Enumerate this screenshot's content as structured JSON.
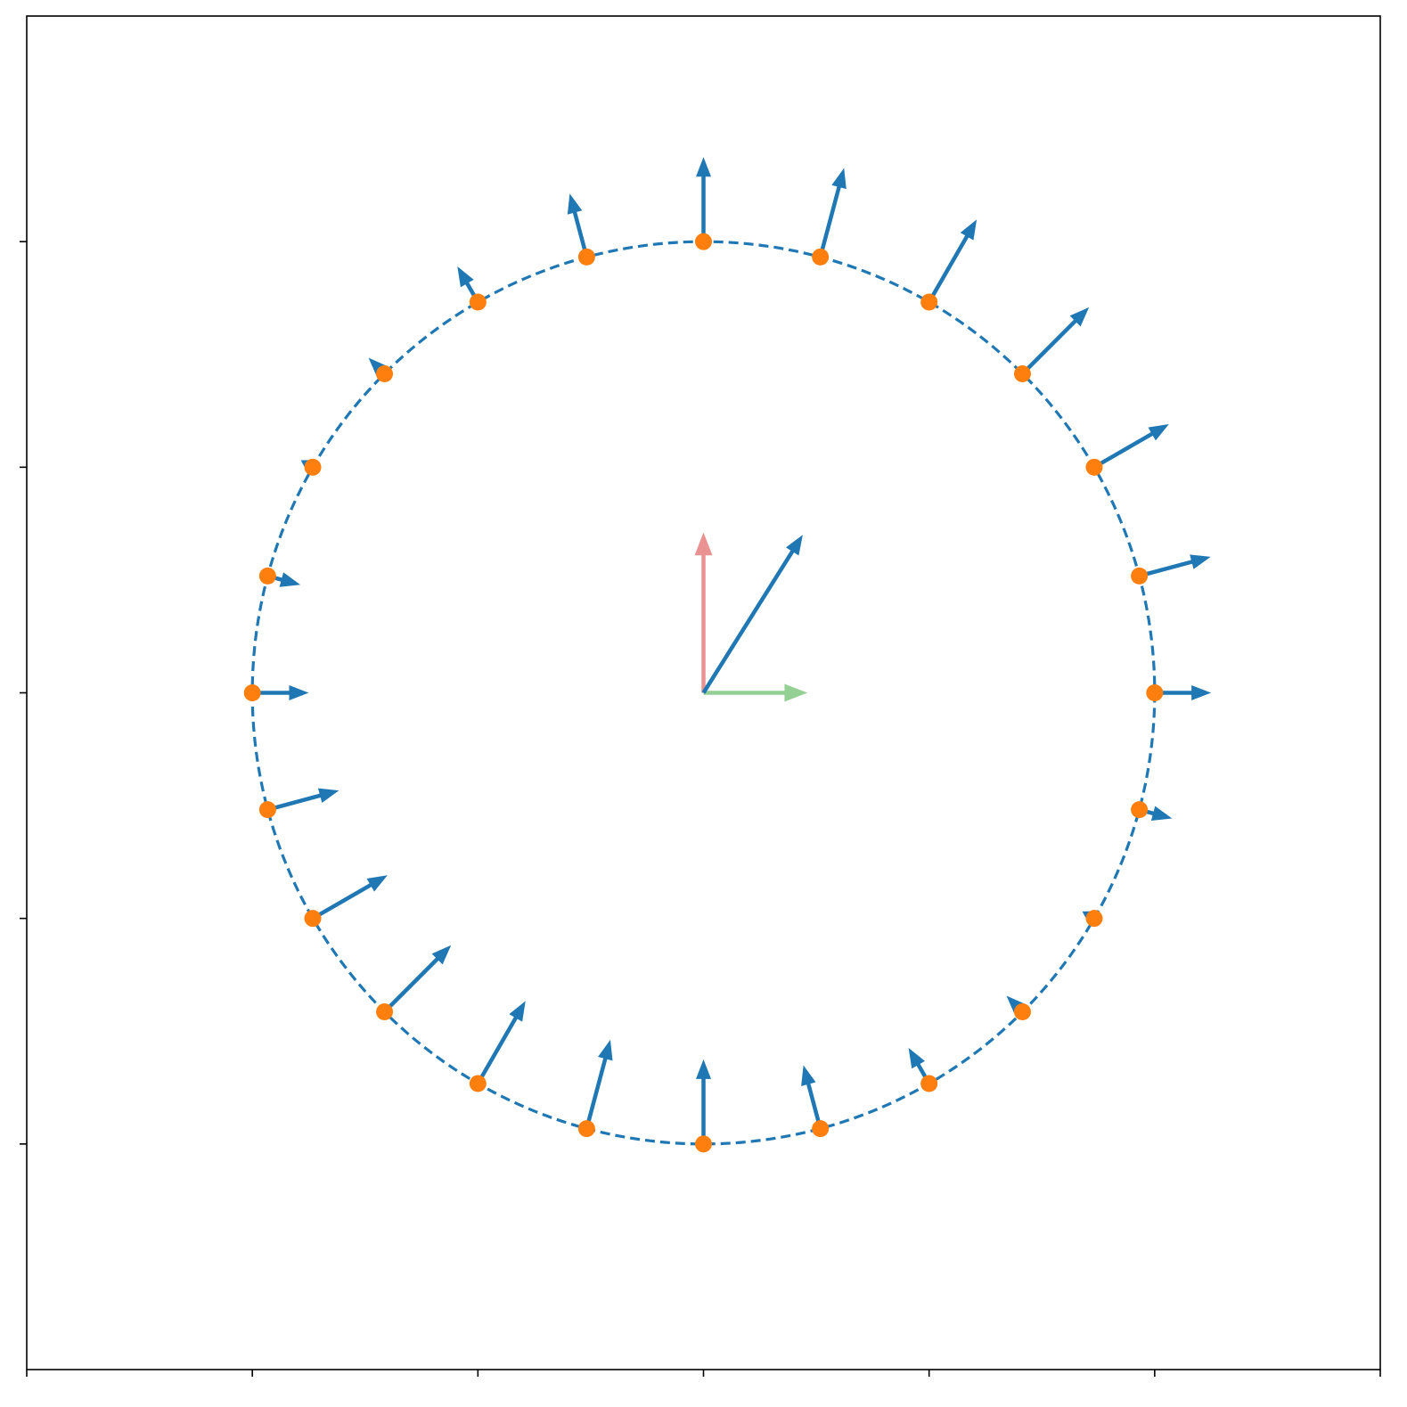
{
  "chart_data": {
    "type": "quiver",
    "title": "",
    "xlabel": "",
    "ylabel": "",
    "xlim": [
      -3,
      3
    ],
    "ylim": [
      -3,
      3
    ],
    "xticks": [
      -3,
      -2,
      -1,
      0,
      1,
      2,
      3
    ],
    "yticks": [
      -2,
      -1,
      0,
      1,
      2
    ],
    "tick_labels_shown": false,
    "grid": false,
    "circle": {
      "center": [
        0,
        0
      ],
      "radius": 2,
      "style": "dashed",
      "color": "#1f77b4"
    },
    "points_color": "#ff7f0e",
    "vectors_color": "#1f77b4",
    "field_vectors": [
      {
        "x": 2.0,
        "y": 0.0,
        "u": 0.25,
        "v": 0.0
      },
      {
        "x": 1.932,
        "y": 0.518,
        "u": 0.316,
        "v": 0.085
      },
      {
        "x": 1.732,
        "y": 1.0,
        "u": 0.331,
        "v": 0.191
      },
      {
        "x": 1.414,
        "y": 1.414,
        "u": 0.295,
        "v": 0.295
      },
      {
        "x": 1.0,
        "y": 1.732,
        "u": 0.211,
        "v": 0.366
      },
      {
        "x": 0.518,
        "y": 1.932,
        "u": 0.105,
        "v": 0.394
      },
      {
        "x": 0.0,
        "y": 2.0,
        "u": 0.0,
        "v": 0.375
      },
      {
        "x": -0.518,
        "y": 1.932,
        "u": -0.075,
        "v": 0.281
      },
      {
        "x": -1.0,
        "y": 1.732,
        "u": -0.091,
        "v": 0.158
      },
      {
        "x": -1.414,
        "y": 1.414,
        "u": -0.071,
        "v": 0.071
      },
      {
        "x": -1.732,
        "y": 1.0,
        "u": -0.053,
        "v": 0.031
      },
      {
        "x": -1.932,
        "y": 0.518,
        "u": 0.145,
        "v": -0.039
      },
      {
        "x": -2.0,
        "y": 0.0,
        "u": 0.25,
        "v": 0.0
      },
      {
        "x": -1.932,
        "y": -0.518,
        "u": 0.316,
        "v": 0.085
      },
      {
        "x": -1.732,
        "y": -1.0,
        "u": 0.331,
        "v": 0.191
      },
      {
        "x": -1.414,
        "y": -1.414,
        "u": 0.295,
        "v": 0.295
      },
      {
        "x": -1.0,
        "y": -1.732,
        "u": 0.211,
        "v": 0.366
      },
      {
        "x": -0.518,
        "y": -1.932,
        "u": 0.105,
        "v": 0.394
      },
      {
        "x": 0.0,
        "y": -2.0,
        "u": 0.0,
        "v": 0.375
      },
      {
        "x": 0.518,
        "y": -1.932,
        "u": -0.075,
        "v": 0.281
      },
      {
        "x": 1.0,
        "y": -1.732,
        "u": -0.091,
        "v": 0.158
      },
      {
        "x": 1.414,
        "y": -1.414,
        "u": -0.071,
        "v": 0.071
      },
      {
        "x": 1.732,
        "y": -1.0,
        "u": -0.053,
        "v": 0.031
      },
      {
        "x": 1.932,
        "y": -0.518,
        "u": 0.145,
        "v": -0.039
      }
    ],
    "center_vectors": [
      {
        "name": "basis-y",
        "x": 0,
        "y": 0,
        "u": 0.0,
        "v": 0.7,
        "color": "#d62728",
        "opacity": 0.5
      },
      {
        "name": "basis-x",
        "x": 0,
        "y": 0,
        "u": 0.45,
        "v": 0.0,
        "color": "#2ca02c",
        "opacity": 0.5
      },
      {
        "name": "resultant",
        "x": 0,
        "y": 0,
        "u": 0.44,
        "v": 0.7,
        "color": "#1f77b4",
        "opacity": 1.0
      }
    ]
  }
}
